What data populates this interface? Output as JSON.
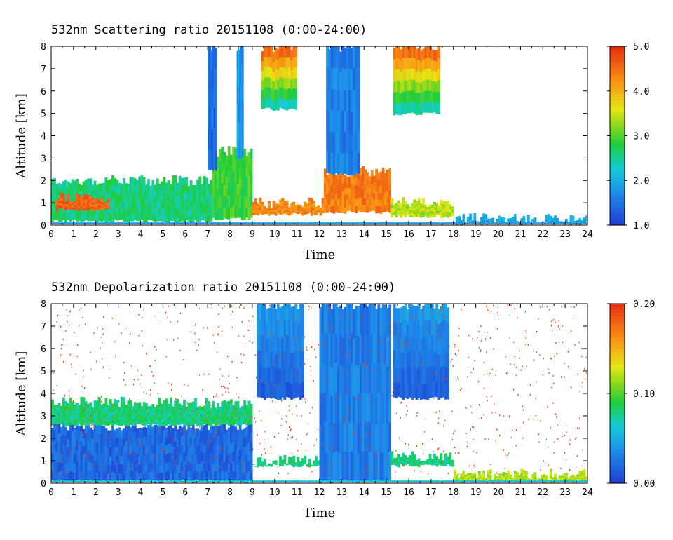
{
  "chart_data": [
    {
      "type": "heatmap",
      "title": "532nm Scattering ratio",
      "date": "20151108",
      "period": "(0:00-24:00)",
      "xlabel": "Time",
      "ylabel": "Altitude [km]",
      "xlim": [
        0,
        24
      ],
      "ylim": [
        0,
        8
      ],
      "xticks": [
        "0",
        "1",
        "2",
        "3",
        "4",
        "5",
        "6",
        "7",
        "8",
        "9",
        "10",
        "11",
        "12",
        "13",
        "14",
        "15",
        "16",
        "17",
        "18",
        "19",
        "20",
        "21",
        "22",
        "23",
        "24"
      ],
      "yticks": [
        "0",
        "1",
        "2",
        "3",
        "4",
        "5",
        "6",
        "7",
        "8"
      ],
      "colorbar": {
        "range": [
          1.0,
          5.0
        ],
        "ticks": [
          "1.0",
          "2.0",
          "3.0",
          "4.0",
          "5.0"
        ]
      },
      "features": [
        {
          "kind": "layer",
          "t": [
            0,
            7.2
          ],
          "z": [
            0.2,
            2.0
          ],
          "value": 2.6
        },
        {
          "kind": "layer",
          "t": [
            0.2,
            2.6
          ],
          "z": [
            0.7,
            1.2
          ],
          "value": 4.6
        },
        {
          "kind": "layer",
          "t": [
            7.2,
            9.0
          ],
          "z": [
            0.3,
            3.3
          ],
          "value": 2.9
        },
        {
          "kind": "layer",
          "t": [
            9.0,
            12.2
          ],
          "z": [
            0.5,
            1.0
          ],
          "value": 4.3
        },
        {
          "kind": "layer",
          "t": [
            12.2,
            15.2
          ],
          "z": [
            0.6,
            2.4
          ],
          "value": 4.4
        },
        {
          "kind": "layer",
          "t": [
            15.2,
            18.0
          ],
          "z": [
            0.4,
            1.0
          ],
          "value": 3.4
        },
        {
          "kind": "layer",
          "t": [
            18.0,
            24.0
          ],
          "z": [
            0.1,
            0.3
          ],
          "value": 2.0
        },
        {
          "kind": "cloud",
          "t": [
            9.4,
            11.0
          ],
          "z": [
            5.2,
            8.0
          ],
          "value": 4.5
        },
        {
          "kind": "cloud",
          "t": [
            15.3,
            17.4
          ],
          "z": [
            5.0,
            8.0
          ],
          "value": 4.5
        },
        {
          "kind": "column",
          "t": [
            12.3,
            13.8
          ],
          "z": [
            2.3,
            8.0
          ],
          "value": 1.6
        },
        {
          "kind": "column",
          "t": [
            7.0,
            7.4
          ],
          "z": [
            2.5,
            8.0
          ],
          "value": 1.4
        },
        {
          "kind": "column",
          "t": [
            8.3,
            8.6
          ],
          "z": [
            3.0,
            8.0
          ],
          "value": 1.8
        }
      ]
    },
    {
      "type": "heatmap",
      "title": "532nm Depolarization ratio",
      "date": "20151108",
      "period": "(0:00-24:00)",
      "xlabel": "Time",
      "ylabel": "Altitude [km]",
      "xlim": [
        0,
        24
      ],
      "ylim": [
        0,
        8
      ],
      "xticks": [
        "0",
        "1",
        "2",
        "3",
        "4",
        "5",
        "6",
        "7",
        "8",
        "9",
        "10",
        "11",
        "12",
        "13",
        "14",
        "15",
        "16",
        "17",
        "18",
        "19",
        "20",
        "21",
        "22",
        "23",
        "24"
      ],
      "yticks": [
        "0",
        "1",
        "2",
        "3",
        "4",
        "5",
        "6",
        "7",
        "8"
      ],
      "colorbar": {
        "range": [
          0.0,
          0.2
        ],
        "ticks": [
          "0.00",
          "0.10",
          "0.20"
        ]
      },
      "features": [
        {
          "kind": "layer",
          "t": [
            0,
            9.0
          ],
          "z": [
            0.1,
            2.6
          ],
          "value": 0.02
        },
        {
          "kind": "layer",
          "t": [
            0,
            9.0
          ],
          "z": [
            2.6,
            3.6
          ],
          "value": 0.08
        },
        {
          "kind": "layer",
          "t": [
            9.0,
            12.0
          ],
          "z": [
            0.8,
            1.0
          ],
          "value": 0.08
        },
        {
          "kind": "column",
          "t": [
            12.0,
            15.2
          ],
          "z": [
            0.1,
            8.0
          ],
          "value": 0.03
        },
        {
          "kind": "cloud",
          "t": [
            9.2,
            11.3
          ],
          "z": [
            3.8,
            8.0
          ],
          "value": 0.04
        },
        {
          "kind": "cloud",
          "t": [
            15.3,
            17.8
          ],
          "z": [
            3.8,
            8.0
          ],
          "value": 0.04
        },
        {
          "kind": "layer",
          "t": [
            15.2,
            18.0
          ],
          "z": [
            0.8,
            1.2
          ],
          "value": 0.08
        },
        {
          "kind": "layer",
          "t": [
            18.0,
            24.0
          ],
          "z": [
            0.1,
            0.4
          ],
          "value": 0.12
        },
        {
          "kind": "noise",
          "t": [
            0,
            24
          ],
          "z": [
            0.4,
            8.0
          ],
          "value": 0.2
        }
      ]
    }
  ]
}
